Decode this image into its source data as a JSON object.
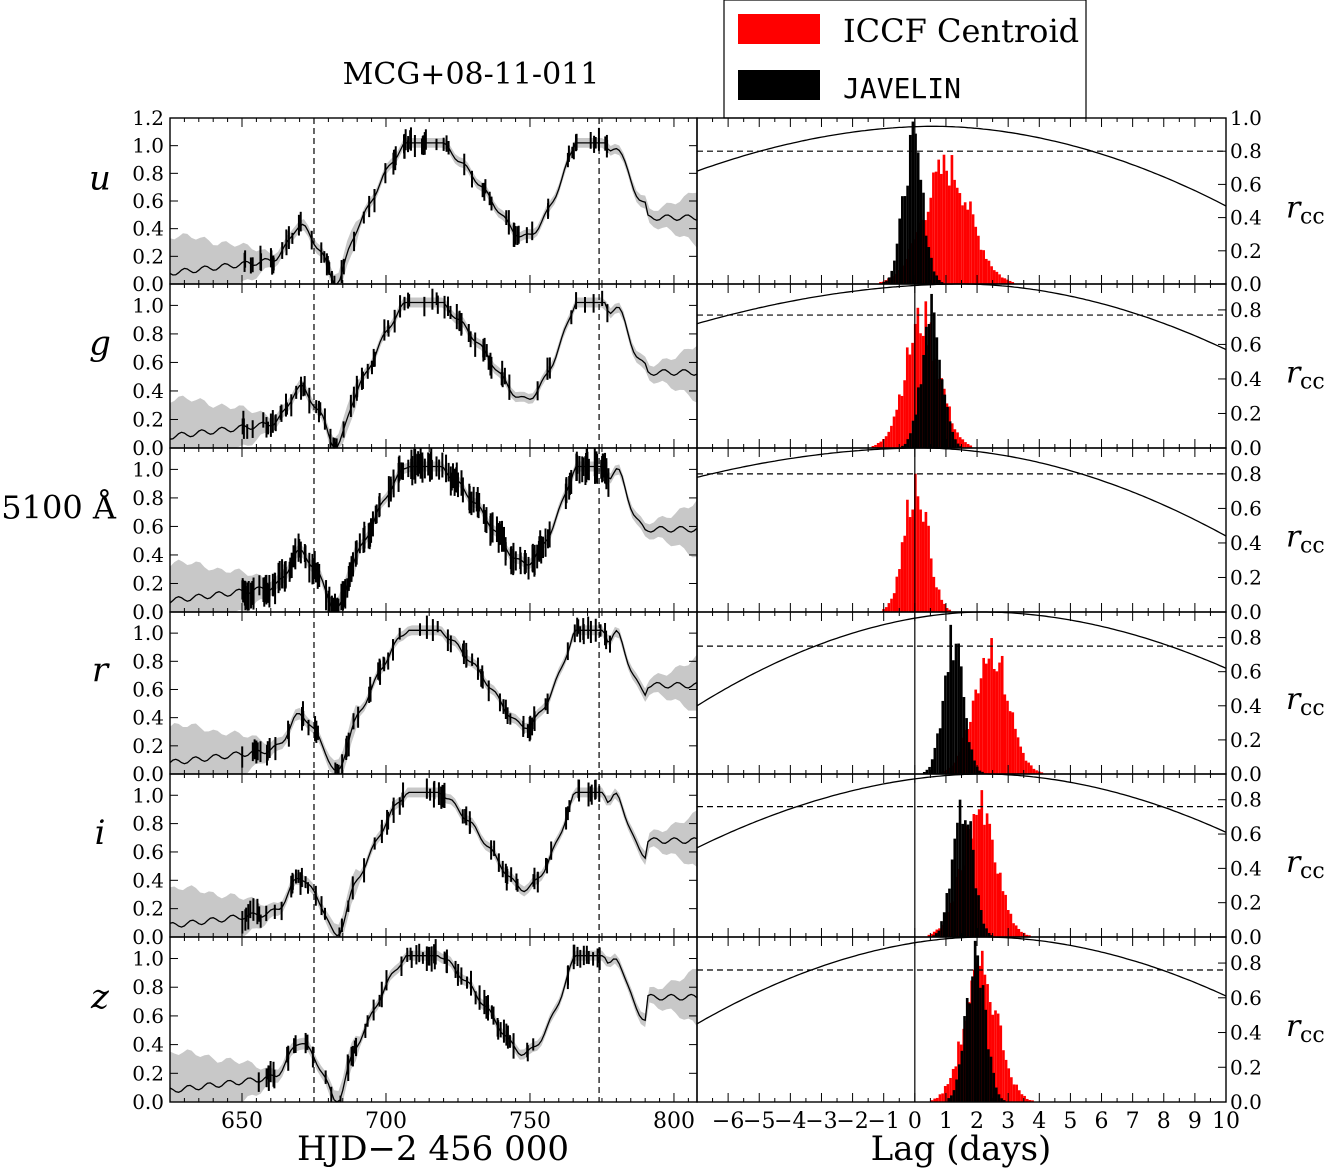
{
  "figure": {
    "title": "MCG+08-11-011",
    "left_xlabel": "HJD−2 456 000",
    "right_xlabel": "Lag (days)",
    "right_ylabel": "r",
    "right_ylabel_sub": "cc",
    "colors": {
      "iccf": "#ff0000",
      "javelin": "#000000",
      "band": "#c8c8c8",
      "curve": "#000000"
    }
  },
  "legend": {
    "iccf_label": "ICCF Centroid",
    "javelin_label": "JAVELIN"
  },
  "chart_data": {
    "type": "line",
    "light_curves": {
      "x_range": [
        625,
        808
      ],
      "x_ticks": [
        650,
        700,
        750,
        800
      ],
      "vertical_lines_x": [
        675,
        774
      ],
      "y_ticks_first": [
        "0.0",
        "0.2",
        "0.4",
        "0.6",
        "0.8",
        "1.0",
        "1.2"
      ],
      "y_ticks_other": [
        "0.0",
        "0.2",
        "0.4",
        "0.6",
        "0.8",
        "1.0"
      ]
    },
    "lag_distributions": {
      "type": "histogram",
      "x_range": [
        -7,
        10
      ],
      "x_ticks": [
        "−6",
        "−5",
        "−4",
        "−3",
        "−2",
        "−1",
        "0",
        "1",
        "2",
        "3",
        "4",
        "5",
        "6",
        "7",
        "8",
        "9",
        "10"
      ],
      "rcc_ticks_first": [
        "0.0",
        "0.2",
        "0.4",
        "0.6",
        "0.8",
        "1.0"
      ],
      "rcc_ticks_other": [
        "0.0",
        "0.2",
        "0.4",
        "0.6",
        "0.8"
      ]
    },
    "bands": [
      {
        "label": "u",
        "italic": true,
        "iccf_centroid_lag": 1.0,
        "javelin_lag": -0.1,
        "rcc_threshold": 0.8,
        "rcc_ylim": [
          0,
          1.0
        ],
        "rcc_peak": 0.95,
        "rcc_peak_lag": 0.6,
        "rcc_edges": [
          0.68,
          0.47
        ]
      },
      {
        "label": "g",
        "italic": true,
        "iccf_centroid_lag": 0.2,
        "javelin_lag": 0.5,
        "rcc_threshold": 0.77,
        "rcc_ylim": [
          0,
          0.95
        ],
        "rcc_peak": 0.95,
        "rcc_peak_lag": 1.5,
        "rcc_edges": [
          0.72,
          0.57
        ]
      },
      {
        "label": "5100 Å",
        "italic": false,
        "iccf_centroid_lag": 0.0,
        "javelin_lag": null,
        "rcc_threshold": 0.8,
        "rcc_ylim": [
          0,
          0.95
        ],
        "rcc_peak": 0.95,
        "rcc_peak_lag": 0.2,
        "rcc_edges": [
          0.78,
          0.44
        ]
      },
      {
        "label": "r",
        "italic": true,
        "iccf_centroid_lag": 2.4,
        "javelin_lag": 1.2,
        "rcc_threshold": 0.75,
        "rcc_ylim": [
          0,
          0.95
        ],
        "rcc_peak": 0.95,
        "rcc_peak_lag": 2.2,
        "rcc_edges": [
          0.4,
          0.62
        ]
      },
      {
        "label": "i",
        "italic": true,
        "iccf_centroid_lag": 2.0,
        "javelin_lag": 1.5,
        "rcc_threshold": 0.76,
        "rcc_ylim": [
          0,
          0.95
        ],
        "rcc_peak": 0.95,
        "rcc_peak_lag": 2.2,
        "rcc_edges": [
          0.52,
          0.61
        ]
      },
      {
        "label": "z",
        "italic": true,
        "iccf_centroid_lag": 2.1,
        "javelin_lag": 1.9,
        "rcc_threshold": 0.76,
        "rcc_ylim": [
          0,
          0.95
        ],
        "rcc_peak": 0.95,
        "rcc_peak_lag": 2.2,
        "rcc_edges": [
          0.45,
          0.61
        ]
      }
    ]
  }
}
